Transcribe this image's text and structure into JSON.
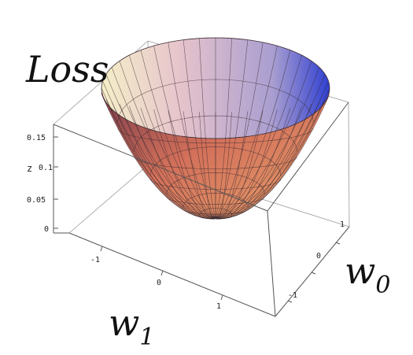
{
  "chart_data": {
    "type": "surface3d",
    "title": "",
    "surface": "z = a * (w0^2 + w1^2) (paraboloid loss bowl)",
    "xlabel_main": "w",
    "xlabel_sub": "1",
    "ylabel_main": "w",
    "ylabel_sub": "0",
    "zlabel": "z",
    "big_zlabel": "Loss",
    "x_ticks": [
      "-1",
      "0",
      "1"
    ],
    "y_ticks": [
      "1",
      "0",
      "-1"
    ],
    "z_ticks": [
      "0.15",
      "0.1",
      "0.05",
      "0"
    ],
    "z_range": [
      0,
      0.15
    ],
    "w_range": [
      -1.4,
      1.4
    ],
    "grid": true,
    "colors": {
      "low": "#c9583d",
      "mid": "#e8a0a8",
      "high_left": "#f3ecc9",
      "high_right": "#2e3fd0",
      "inside": "#bba6c6"
    }
  }
}
